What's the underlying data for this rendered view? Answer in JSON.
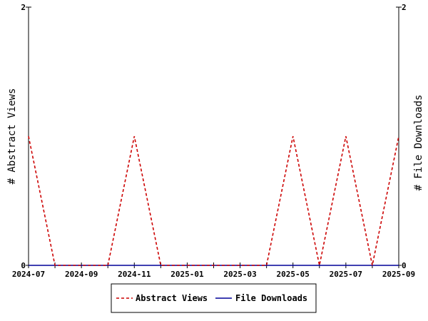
{
  "chart_data": {
    "type": "line",
    "x": [
      "2024-07",
      "2024-08",
      "2024-09",
      "2024-10",
      "2024-11",
      "2024-12",
      "2025-01",
      "2025-02",
      "2025-03",
      "2025-04",
      "2025-05",
      "2025-06",
      "2025-07",
      "2025-08",
      "2025-09"
    ],
    "x_tick_labels": [
      "2024-07",
      "2024-09",
      "2024-11",
      "2025-01",
      "2025-03",
      "2025-05",
      "2025-07",
      "2025-09"
    ],
    "series": [
      {
        "name": "Abstract Views",
        "axis": "left",
        "color": "#cc0000",
        "style": "dashed",
        "values": [
          1,
          0,
          0,
          0,
          1,
          0,
          0,
          0,
          0,
          0,
          1,
          0,
          1,
          0,
          1
        ]
      },
      {
        "name": "File Downloads",
        "axis": "right",
        "color": "#000099",
        "style": "solid",
        "values": [
          0,
          0,
          0,
          0,
          0,
          0,
          0,
          0,
          0,
          0,
          0,
          0,
          0,
          0,
          0
        ]
      }
    ],
    "ylabel": "# Abstract Views",
    "y2label": "# File Downloads",
    "ylim": [
      0,
      2
    ],
    "y2lim": [
      0,
      2
    ],
    "y_ticks": [
      "0",
      "2"
    ],
    "y2_ticks": [
      "0",
      "2"
    ],
    "grid": false,
    "legend_position": "bottom-center"
  }
}
